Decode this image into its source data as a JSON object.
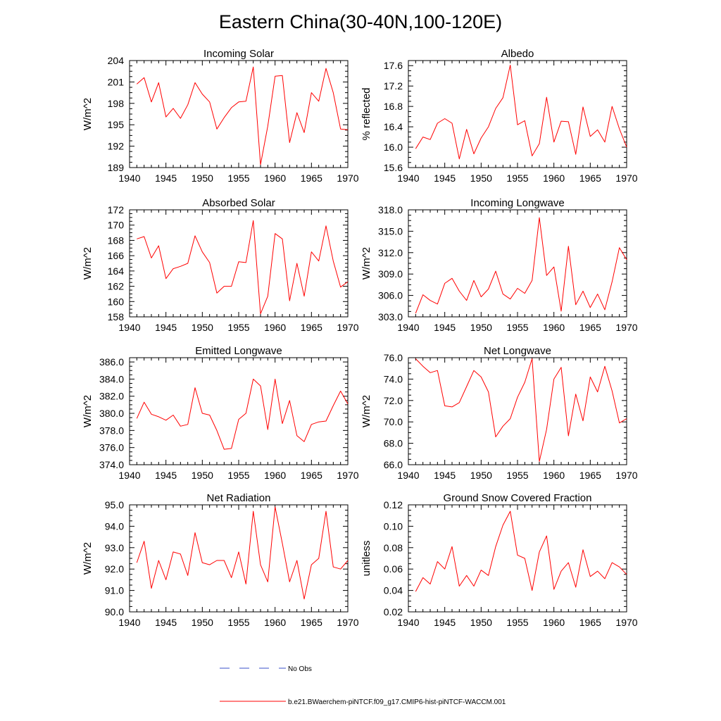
{
  "figure": {
    "title": "Eastern China(30-40N,100-120E)",
    "legend": {
      "obs_label": "No Obs",
      "obs_color": "#3a50c8",
      "model_label": "b.e21.BWaerchem-piNTCF.f09_g17.CMIP6-hist-piNTCF-WACCM.001",
      "model_color": "#ff0000"
    }
  },
  "chart_data": [
    {
      "type": "line",
      "title": "Incoming Solar",
      "ylabel": "W/m^2",
      "xlim": [
        1940,
        1970
      ],
      "ylim": [
        189,
        204
      ],
      "xticks": [
        "1940",
        "1945",
        "1950",
        "1955",
        "1960",
        "1965",
        "1970"
      ],
      "yticks": [
        "189",
        "192",
        "195",
        "198",
        "201",
        "204"
      ],
      "x": [
        1941,
        1942,
        1943,
        1944,
        1945,
        1946,
        1947,
        1948,
        1949,
        1950,
        1951,
        1952,
        1953,
        1954,
        1955,
        1956,
        1957,
        1958,
        1959,
        1960,
        1961,
        1962,
        1963,
        1964,
        1965,
        1966,
        1967,
        1968,
        1969,
        1970
      ],
      "series": [
        {
          "values": [
            200.7,
            201.6,
            198.2,
            200.9,
            196.1,
            197.3,
            195.9,
            197.8,
            200.9,
            199.3,
            198.2,
            194.4,
            196.0,
            197.4,
            198.2,
            198.3,
            203.1,
            189.4,
            194.8,
            201.8,
            201.9,
            192.5,
            196.7,
            193.9,
            199.5,
            198.3,
            202.9,
            199.5,
            194.4,
            194.3
          ]
        }
      ]
    },
    {
      "type": "line",
      "title": "Albedo",
      "ylabel": "% reflected",
      "xlim": [
        1940,
        1970
      ],
      "ylim": [
        15.6,
        17.7
      ],
      "xticks": [
        "1940",
        "1945",
        "1950",
        "1955",
        "1960",
        "1965",
        "1970"
      ],
      "yticks": [
        "15.6",
        "16.0",
        "16.4",
        "16.8",
        "17.2",
        "17.6"
      ],
      "x": [
        1941,
        1942,
        1943,
        1944,
        1945,
        1946,
        1947,
        1948,
        1949,
        1950,
        1951,
        1952,
        1953,
        1954,
        1955,
        1956,
        1957,
        1958,
        1959,
        1960,
        1961,
        1962,
        1963,
        1964,
        1965,
        1966,
        1967,
        1968,
        1969,
        1970
      ],
      "series": [
        {
          "values": [
            15.97,
            16.2,
            16.15,
            16.47,
            16.56,
            16.47,
            15.77,
            16.35,
            15.87,
            16.18,
            16.4,
            16.76,
            16.97,
            17.61,
            16.44,
            16.52,
            15.83,
            16.07,
            16.98,
            16.1,
            16.51,
            16.5,
            15.86,
            16.79,
            16.21,
            16.34,
            16.1,
            16.8,
            16.36,
            16.0
          ]
        }
      ]
    },
    {
      "type": "line",
      "title": "Absorbed Solar",
      "ylabel": "W/m^2",
      "xlim": [
        1940,
        1970
      ],
      "ylim": [
        158,
        172
      ],
      "xticks": [
        "1940",
        "1945",
        "1950",
        "1955",
        "1960",
        "1965",
        "1970"
      ],
      "yticks": [
        "158",
        "160",
        "162",
        "164",
        "166",
        "168",
        "170",
        "172"
      ],
      "x": [
        1941,
        1942,
        1943,
        1944,
        1945,
        1946,
        1947,
        1948,
        1949,
        1950,
        1951,
        1952,
        1953,
        1954,
        1955,
        1956,
        1957,
        1958,
        1959,
        1960,
        1961,
        1962,
        1963,
        1964,
        1965,
        1966,
        1967,
        1968,
        1969,
        1970
      ],
      "series": [
        {
          "values": [
            168.2,
            168.5,
            165.7,
            167.3,
            163.0,
            164.3,
            164.6,
            165.0,
            168.6,
            166.5,
            165.1,
            161.1,
            162.0,
            162.0,
            165.2,
            165.1,
            170.6,
            158.4,
            160.7,
            168.9,
            168.2,
            160.1,
            165.0,
            160.7,
            166.5,
            165.3,
            169.9,
            165.3,
            161.9,
            162.6
          ]
        }
      ]
    },
    {
      "type": "line",
      "title": "Incoming Longwave",
      "ylabel": "W/m^2",
      "xlim": [
        1940,
        1970
      ],
      "ylim": [
        303.0,
        318.0
      ],
      "xticks": [
        "1940",
        "1945",
        "1950",
        "1955",
        "1960",
        "1965",
        "1970"
      ],
      "yticks": [
        "303.0",
        "306.0",
        "309.0",
        "312.0",
        "315.0",
        "318.0"
      ],
      "x": [
        1941,
        1942,
        1943,
        1944,
        1945,
        1946,
        1947,
        1948,
        1949,
        1950,
        1951,
        1952,
        1953,
        1954,
        1955,
        1956,
        1957,
        1958,
        1959,
        1960,
        1961,
        1962,
        1963,
        1964,
        1965,
        1966,
        1967,
        1968,
        1969,
        1970
      ],
      "series": [
        {
          "values": [
            303.5,
            306.1,
            305.3,
            304.8,
            307.7,
            308.4,
            306.6,
            305.3,
            308.1,
            305.8,
            306.9,
            309.4,
            306.2,
            305.5,
            307.0,
            306.3,
            308.1,
            316.9,
            308.8,
            310.0,
            303.8,
            312.9,
            304.7,
            306.6,
            304.3,
            306.2,
            304.0,
            307.9,
            312.7,
            311.0
          ]
        }
      ]
    },
    {
      "type": "line",
      "title": "Emitted Longwave",
      "ylabel": "W/m^2",
      "xlim": [
        1940,
        1970
      ],
      "ylim": [
        374.0,
        386.5
      ],
      "xticks": [
        "1940",
        "1945",
        "1950",
        "1955",
        "1960",
        "1965",
        "1970"
      ],
      "yticks": [
        "374.0",
        "376.0",
        "378.0",
        "380.0",
        "382.0",
        "384.0",
        "386.0"
      ],
      "x": [
        1941,
        1942,
        1943,
        1944,
        1945,
        1946,
        1947,
        1948,
        1949,
        1950,
        1951,
        1952,
        1953,
        1954,
        1955,
        1956,
        1957,
        1958,
        1959,
        1960,
        1961,
        1962,
        1963,
        1964,
        1965,
        1966,
        1967,
        1968,
        1969,
        1970
      ],
      "series": [
        {
          "values": [
            379.4,
            381.3,
            379.9,
            379.6,
            379.2,
            379.8,
            378.5,
            378.7,
            383.0,
            380.0,
            379.8,
            378.0,
            375.8,
            375.9,
            379.3,
            380.0,
            384.0,
            383.2,
            378.1,
            384.0,
            378.8,
            381.5,
            377.4,
            376.7,
            378.7,
            379.0,
            379.1,
            380.9,
            382.6,
            381.1
          ]
        }
      ]
    },
    {
      "type": "line",
      "title": "Net Longwave",
      "ylabel": "W/m^2",
      "xlim": [
        1940,
        1970
      ],
      "ylim": [
        66.0,
        76.0
      ],
      "xticks": [
        "1940",
        "1945",
        "1950",
        "1955",
        "1960",
        "1965",
        "1970"
      ],
      "yticks": [
        "66.0",
        "68.0",
        "70.0",
        "72.0",
        "74.0",
        "76.0"
      ],
      "x": [
        1941,
        1942,
        1943,
        1944,
        1945,
        1946,
        1947,
        1948,
        1949,
        1950,
        1951,
        1952,
        1953,
        1954,
        1955,
        1956,
        1957,
        1958,
        1959,
        1960,
        1961,
        1962,
        1963,
        1964,
        1965,
        1966,
        1967,
        1968,
        1969,
        1970
      ],
      "series": [
        {
          "values": [
            75.9,
            75.2,
            74.6,
            74.8,
            71.5,
            71.4,
            71.8,
            73.3,
            74.8,
            74.2,
            72.8,
            68.6,
            69.6,
            70.3,
            72.3,
            73.7,
            75.9,
            66.3,
            69.3,
            74.0,
            75.1,
            68.7,
            72.6,
            70.1,
            74.2,
            72.8,
            75.2,
            72.9,
            69.9,
            70.3
          ]
        }
      ]
    },
    {
      "type": "line",
      "title": "Net Radiation",
      "ylabel": "W/m^2",
      "xlim": [
        1940,
        1970
      ],
      "ylim": [
        90.0,
        95.0
      ],
      "xticks": [
        "1940",
        "1945",
        "1950",
        "1955",
        "1960",
        "1965",
        "1970"
      ],
      "yticks": [
        "90.0",
        "91.0",
        "92.0",
        "93.0",
        "94.0",
        "95.0"
      ],
      "x": [
        1941,
        1942,
        1943,
        1944,
        1945,
        1946,
        1947,
        1948,
        1949,
        1950,
        1951,
        1952,
        1953,
        1954,
        1955,
        1956,
        1957,
        1958,
        1959,
        1960,
        1961,
        1962,
        1963,
        1964,
        1965,
        1966,
        1967,
        1968,
        1969,
        1970
      ],
      "series": [
        {
          "values": [
            92.3,
            93.3,
            91.1,
            92.4,
            91.5,
            92.8,
            92.7,
            91.7,
            93.7,
            92.3,
            92.2,
            92.4,
            92.4,
            91.6,
            92.8,
            91.3,
            94.7,
            92.2,
            91.4,
            94.9,
            93.2,
            91.4,
            92.4,
            90.6,
            92.2,
            92.5,
            94.7,
            92.1,
            92.0,
            92.4
          ]
        }
      ]
    },
    {
      "type": "line",
      "title": "Ground Snow Covered Fraction",
      "ylabel": "unitless",
      "xlim": [
        1940,
        1970
      ],
      "ylim": [
        0.02,
        0.12
      ],
      "xticks": [
        "1940",
        "1945",
        "1950",
        "1955",
        "1960",
        "1965",
        "1970"
      ],
      "yticks": [
        "0.02",
        "0.04",
        "0.06",
        "0.08",
        "0.10",
        "0.12"
      ],
      "x": [
        1941,
        1942,
        1943,
        1944,
        1945,
        1946,
        1947,
        1948,
        1949,
        1950,
        1951,
        1952,
        1953,
        1954,
        1955,
        1956,
        1957,
        1958,
        1959,
        1960,
        1961,
        1962,
        1963,
        1964,
        1965,
        1966,
        1967,
        1968,
        1969,
        1970
      ],
      "series": [
        {
          "values": [
            0.039,
            0.052,
            0.046,
            0.067,
            0.06,
            0.081,
            0.044,
            0.054,
            0.044,
            0.059,
            0.054,
            0.081,
            0.101,
            0.114,
            0.073,
            0.07,
            0.04,
            0.076,
            0.091,
            0.041,
            0.058,
            0.066,
            0.043,
            0.078,
            0.053,
            0.058,
            0.051,
            0.066,
            0.062,
            0.055
          ]
        }
      ]
    }
  ]
}
